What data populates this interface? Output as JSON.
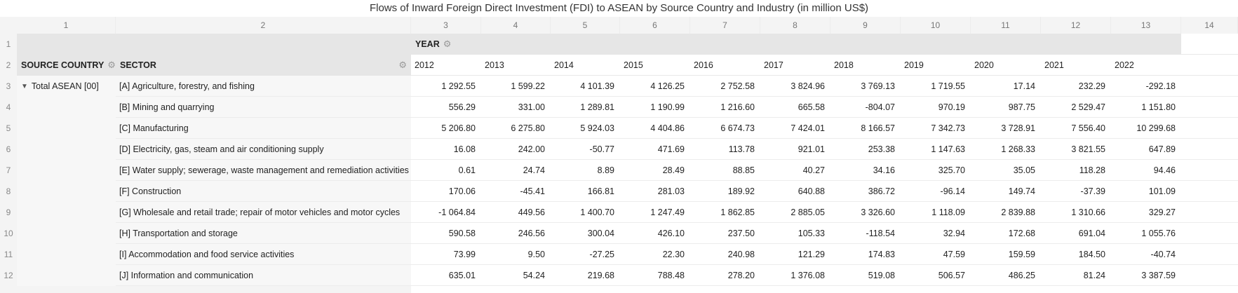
{
  "title": "Flows of Inward Foreign Direct Investment (FDI) to ASEAN by Source Country and Industry (in million US$)",
  "column_numbers": [
    "1",
    "2",
    "3",
    "4",
    "5",
    "6",
    "7",
    "8",
    "9",
    "10",
    "11",
    "12",
    "13",
    "14"
  ],
  "row_numbers": [
    "1",
    "2",
    "3",
    "4",
    "5",
    "6",
    "7",
    "8",
    "9",
    "10",
    "11",
    "12"
  ],
  "headers": {
    "year_label": "YEAR",
    "source_country_label": "SOURCE COUNTRY",
    "sector_label": "SECTOR",
    "years": [
      "2012",
      "2013",
      "2014",
      "2015",
      "2016",
      "2017",
      "2018",
      "2019",
      "2020",
      "2021",
      "2022"
    ]
  },
  "source_country": "Total ASEAN [00]",
  "rows": [
    {
      "sector": "[A] Agriculture, forestry, and fishing",
      "values": [
        "1 292.55",
        "1 599.22",
        "4 101.39",
        "4 126.25",
        "2 752.58",
        "3 824.96",
        "3 769.13",
        "1 719.55",
        "17.14",
        "232.29",
        "-292.18"
      ]
    },
    {
      "sector": "[B] Mining and quarrying",
      "values": [
        "556.29",
        "331.00",
        "1 289.81",
        "1 190.99",
        "1 216.60",
        "665.58",
        "-804.07",
        "970.19",
        "987.75",
        "2 529.47",
        "1 151.80"
      ]
    },
    {
      "sector": "[C] Manufacturing",
      "values": [
        "5 206.80",
        "6 275.80",
        "5 924.03",
        "4 404.86",
        "6 674.73",
        "7 424.01",
        "8 166.57",
        "7 342.73",
        "3 728.91",
        "7 556.40",
        "10 299.68"
      ]
    },
    {
      "sector": "[D] Electricity, gas, steam and air conditioning supply",
      "values": [
        "16.08",
        "242.00",
        "-50.77",
        "471.69",
        "113.78",
        "921.01",
        "253.38",
        "1 147.63",
        "1 268.33",
        "3 821.55",
        "647.89"
      ]
    },
    {
      "sector": "[E] Water supply; sewerage, waste management and remediation activities",
      "values": [
        "0.61",
        "24.74",
        "8.89",
        "28.49",
        "88.85",
        "40.27",
        "34.16",
        "325.70",
        "35.05",
        "118.28",
        "94.46"
      ]
    },
    {
      "sector": "[F] Construction",
      "values": [
        "170.06",
        "-45.41",
        "166.81",
        "281.03",
        "189.92",
        "640.88",
        "386.72",
        "-96.14",
        "149.74",
        "-37.39",
        "101.09"
      ]
    },
    {
      "sector": "[G] Wholesale and retail trade; repair of motor vehicles and motor cycles",
      "values": [
        "-1 064.84",
        "449.56",
        "1 400.70",
        "1 247.49",
        "1 862.85",
        "2 885.05",
        "3 326.60",
        "1 118.09",
        "2 839.88",
        "1 310.66",
        "329.27"
      ]
    },
    {
      "sector": "[H] Transportation and storage",
      "values": [
        "590.58",
        "246.56",
        "300.04",
        "426.10",
        "237.50",
        "105.33",
        "-118.54",
        "32.94",
        "172.68",
        "691.04",
        "1 055.76"
      ]
    },
    {
      "sector": "[I] Accommodation and food service activities",
      "values": [
        "73.99",
        "9.50",
        "-27.25",
        "22.30",
        "240.98",
        "121.29",
        "174.83",
        "47.59",
        "159.59",
        "184.50",
        "-40.74"
      ]
    },
    {
      "sector": "[J] Information and communication",
      "values": [
        "635.01",
        "54.24",
        "219.68",
        "788.48",
        "278.20",
        "1 376.08",
        "519.08",
        "506.57",
        "486.25",
        "81.24",
        "3 387.59"
      ]
    }
  ]
}
